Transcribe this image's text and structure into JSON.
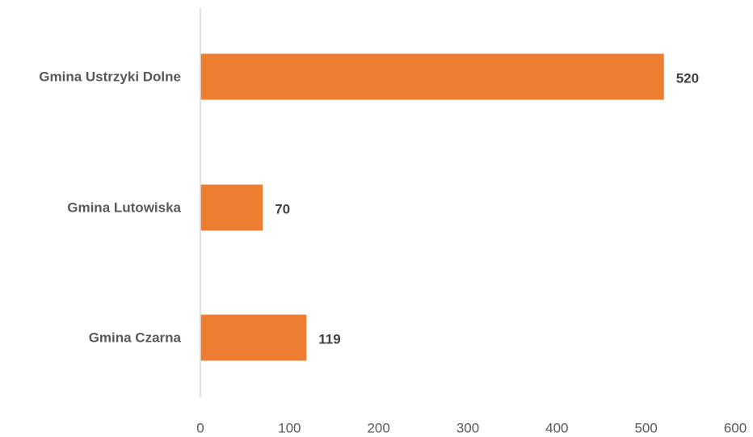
{
  "chart_data": {
    "type": "bar",
    "orientation": "horizontal",
    "title": "",
    "xlabel": "",
    "ylabel": "",
    "categories": [
      "Gmina Ustrzyki Dolne",
      "Gmina Lutowiska",
      "Gmina Czarna"
    ],
    "values": [
      520,
      70,
      119
    ],
    "data_labels": [
      "520",
      "70",
      "119"
    ],
    "xlim": [
      0,
      600
    ],
    "x_ticks": [
      0,
      100,
      200,
      300,
      400,
      500,
      600
    ],
    "x_tick_labels": [
      "0",
      "100",
      "200",
      "300",
      "400",
      "500",
      "600"
    ],
    "grid": false,
    "legend": "none",
    "bar_color": "#ED7D31"
  }
}
